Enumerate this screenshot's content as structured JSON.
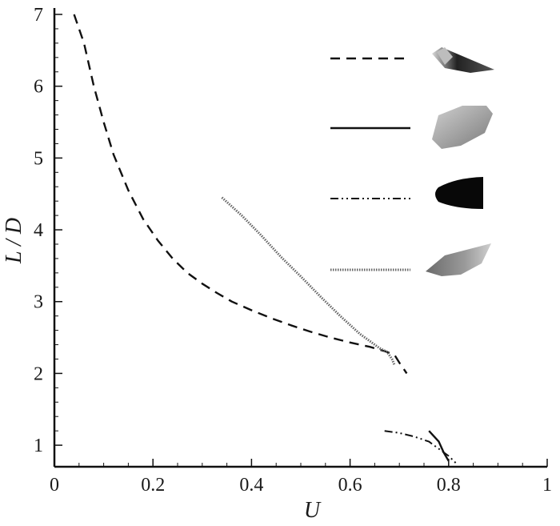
{
  "chart_data": {
    "type": "line",
    "xlabel": "U",
    "ylabel": "L / D",
    "xlim": [
      0,
      1
    ],
    "ylim": [
      0.7,
      7
    ],
    "x_ticks": [
      0,
      0.2,
      0.4,
      0.6,
      0.8,
      1
    ],
    "x_tick_labels": [
      "0",
      "0.2",
      "0.4",
      "0.6",
      "0.8",
      "1"
    ],
    "y_ticks": [
      1,
      2,
      3,
      4,
      5,
      6,
      7
    ],
    "y_tick_labels": [
      "1",
      "2",
      "3",
      "4",
      "5",
      "6",
      "7"
    ],
    "grid": false,
    "legend_position": "top-right",
    "series": [
      {
        "style": "dashed",
        "legend_icon": "dark-cone-body",
        "points": [
          [
            0.04,
            7.0
          ],
          [
            0.06,
            6.6
          ],
          [
            0.08,
            6.0
          ],
          [
            0.1,
            5.5
          ],
          [
            0.12,
            5.05
          ],
          [
            0.15,
            4.55
          ],
          [
            0.18,
            4.15
          ],
          [
            0.21,
            3.85
          ],
          [
            0.24,
            3.6
          ],
          [
            0.27,
            3.4
          ],
          [
            0.3,
            3.25
          ],
          [
            0.33,
            3.12
          ],
          [
            0.36,
            3.0
          ],
          [
            0.4,
            2.88
          ],
          [
            0.44,
            2.77
          ],
          [
            0.48,
            2.67
          ],
          [
            0.52,
            2.58
          ],
          [
            0.56,
            2.5
          ],
          [
            0.6,
            2.43
          ],
          [
            0.64,
            2.37
          ],
          [
            0.67,
            2.31
          ],
          [
            0.69,
            2.26
          ],
          [
            0.7,
            2.15
          ],
          [
            0.71,
            2.05
          ],
          [
            0.715,
            2.0
          ]
        ]
      },
      {
        "style": "solid",
        "legend_icon": "grey-rounded-body",
        "points": [
          [
            0.76,
            1.2
          ],
          [
            0.78,
            1.05
          ],
          [
            0.79,
            0.9
          ],
          [
            0.8,
            0.78
          ]
        ]
      },
      {
        "style": "dash-dot-dot",
        "legend_icon": "black-blunt-body",
        "points": [
          [
            0.67,
            1.2
          ],
          [
            0.7,
            1.17
          ],
          [
            0.73,
            1.12
          ],
          [
            0.76,
            1.05
          ],
          [
            0.78,
            0.95
          ],
          [
            0.8,
            0.85
          ],
          [
            0.815,
            0.75
          ]
        ]
      },
      {
        "style": "dotted",
        "legend_icon": "grey-wedge-body",
        "points": [
          [
            0.34,
            4.45
          ],
          [
            0.38,
            4.2
          ],
          [
            0.42,
            3.92
          ],
          [
            0.46,
            3.62
          ],
          [
            0.5,
            3.35
          ],
          [
            0.54,
            3.07
          ],
          [
            0.58,
            2.8
          ],
          [
            0.62,
            2.55
          ],
          [
            0.66,
            2.35
          ],
          [
            0.675,
            2.3
          ],
          [
            0.685,
            2.2
          ],
          [
            0.69,
            2.12
          ]
        ]
      }
    ]
  }
}
